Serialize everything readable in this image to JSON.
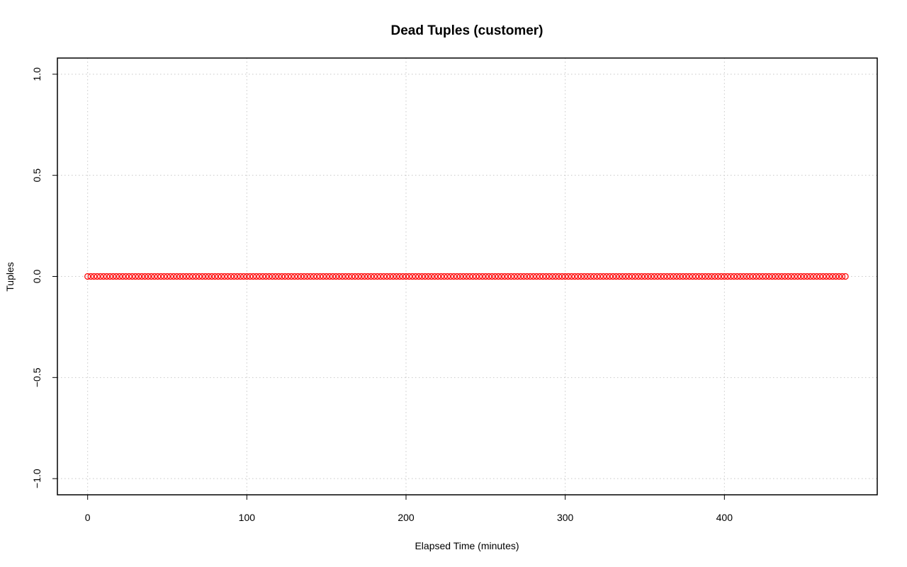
{
  "chart_data": {
    "type": "scatter",
    "title": "Dead Tuples (customer)",
    "xlabel": "Elapsed Time (minutes)",
    "ylabel": "Tuples",
    "xlim": [
      -19,
      496
    ],
    "ylim": [
      -1.08,
      1.08
    ],
    "x_ticks": [
      0,
      100,
      200,
      300,
      400
    ],
    "x_tick_labels": [
      "0",
      "100",
      "200",
      "300",
      "400"
    ],
    "y_ticks": [
      -1.0,
      -0.5,
      0.0,
      0.5,
      1.0
    ],
    "y_tick_labels": [
      "−1.0",
      "−0.5",
      "0.0",
      "0.5",
      "1.0"
    ],
    "grid": true,
    "marker": "open-circle",
    "series": [
      {
        "color": "#ff0000",
        "x_start": 0,
        "x_end": 476,
        "x_step": 2,
        "y_constant": 0
      }
    ]
  }
}
